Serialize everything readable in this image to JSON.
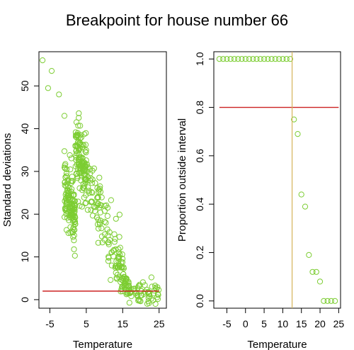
{
  "title": "Breakpoint for house number  66",
  "colors": {
    "points": "#7ccd32",
    "threshold_line": "#cc2222",
    "breakpoint_line": "#d4b45a",
    "frame": "#000000"
  },
  "chart_data": [
    {
      "type": "scatter",
      "xlabel": "Temperature",
      "ylabel": "Standard deviations",
      "xlim": [
        -8,
        27
      ],
      "ylim": [
        -2,
        58
      ],
      "xticks": [
        -5,
        5,
        15,
        25
      ],
      "yticks": [
        0,
        10,
        20,
        30,
        40,
        50
      ],
      "grid": false,
      "hline": {
        "y": 2,
        "x_from": -7,
        "x_to": 25
      },
      "series_generated": true,
      "sample_points": [
        [
          -7,
          56
        ],
        [
          -4.5,
          53.5
        ],
        [
          -5.5,
          49.5
        ],
        [
          -2.5,
          48
        ],
        [
          -1,
          43
        ],
        [
          2,
          36
        ],
        [
          5,
          28
        ],
        [
          8,
          22
        ],
        [
          10,
          14
        ],
        [
          12,
          8
        ],
        [
          15,
          3
        ],
        [
          17,
          1.5
        ],
        [
          20,
          1
        ],
        [
          24,
          -1
        ]
      ]
    },
    {
      "type": "scatter",
      "xlabel": "Temperature",
      "ylabel": "Proportion outside interval",
      "xlim": [
        -8.5,
        25.5
      ],
      "ylim": [
        -0.03,
        1.03
      ],
      "xticks": [
        -5,
        0,
        5,
        10,
        15,
        20,
        25
      ],
      "yticks": [
        0.0,
        0.2,
        0.4,
        0.6,
        0.8,
        1.0
      ],
      "grid": false,
      "hline": {
        "y": 0.8,
        "x_from": -7,
        "x_to": 25
      },
      "vline": {
        "x": 12.5
      },
      "x": [
        -7,
        -6,
        -5,
        -4,
        -3,
        -2,
        -1,
        0,
        1,
        2,
        3,
        4,
        5,
        6,
        7,
        8,
        9,
        10,
        11,
        12,
        13,
        14,
        15,
        16,
        17,
        18,
        19,
        20,
        21,
        22,
        23,
        24
      ],
      "y": [
        1,
        1,
        1,
        1,
        1,
        1,
        1,
        1,
        1,
        1,
        1,
        1,
        1,
        1,
        1,
        1,
        1,
        1,
        1,
        1,
        0.75,
        0.69,
        0.44,
        0.39,
        0.19,
        0.12,
        0.12,
        0.08,
        0.0,
        0.0,
        0.0,
        0.0
      ]
    }
  ]
}
